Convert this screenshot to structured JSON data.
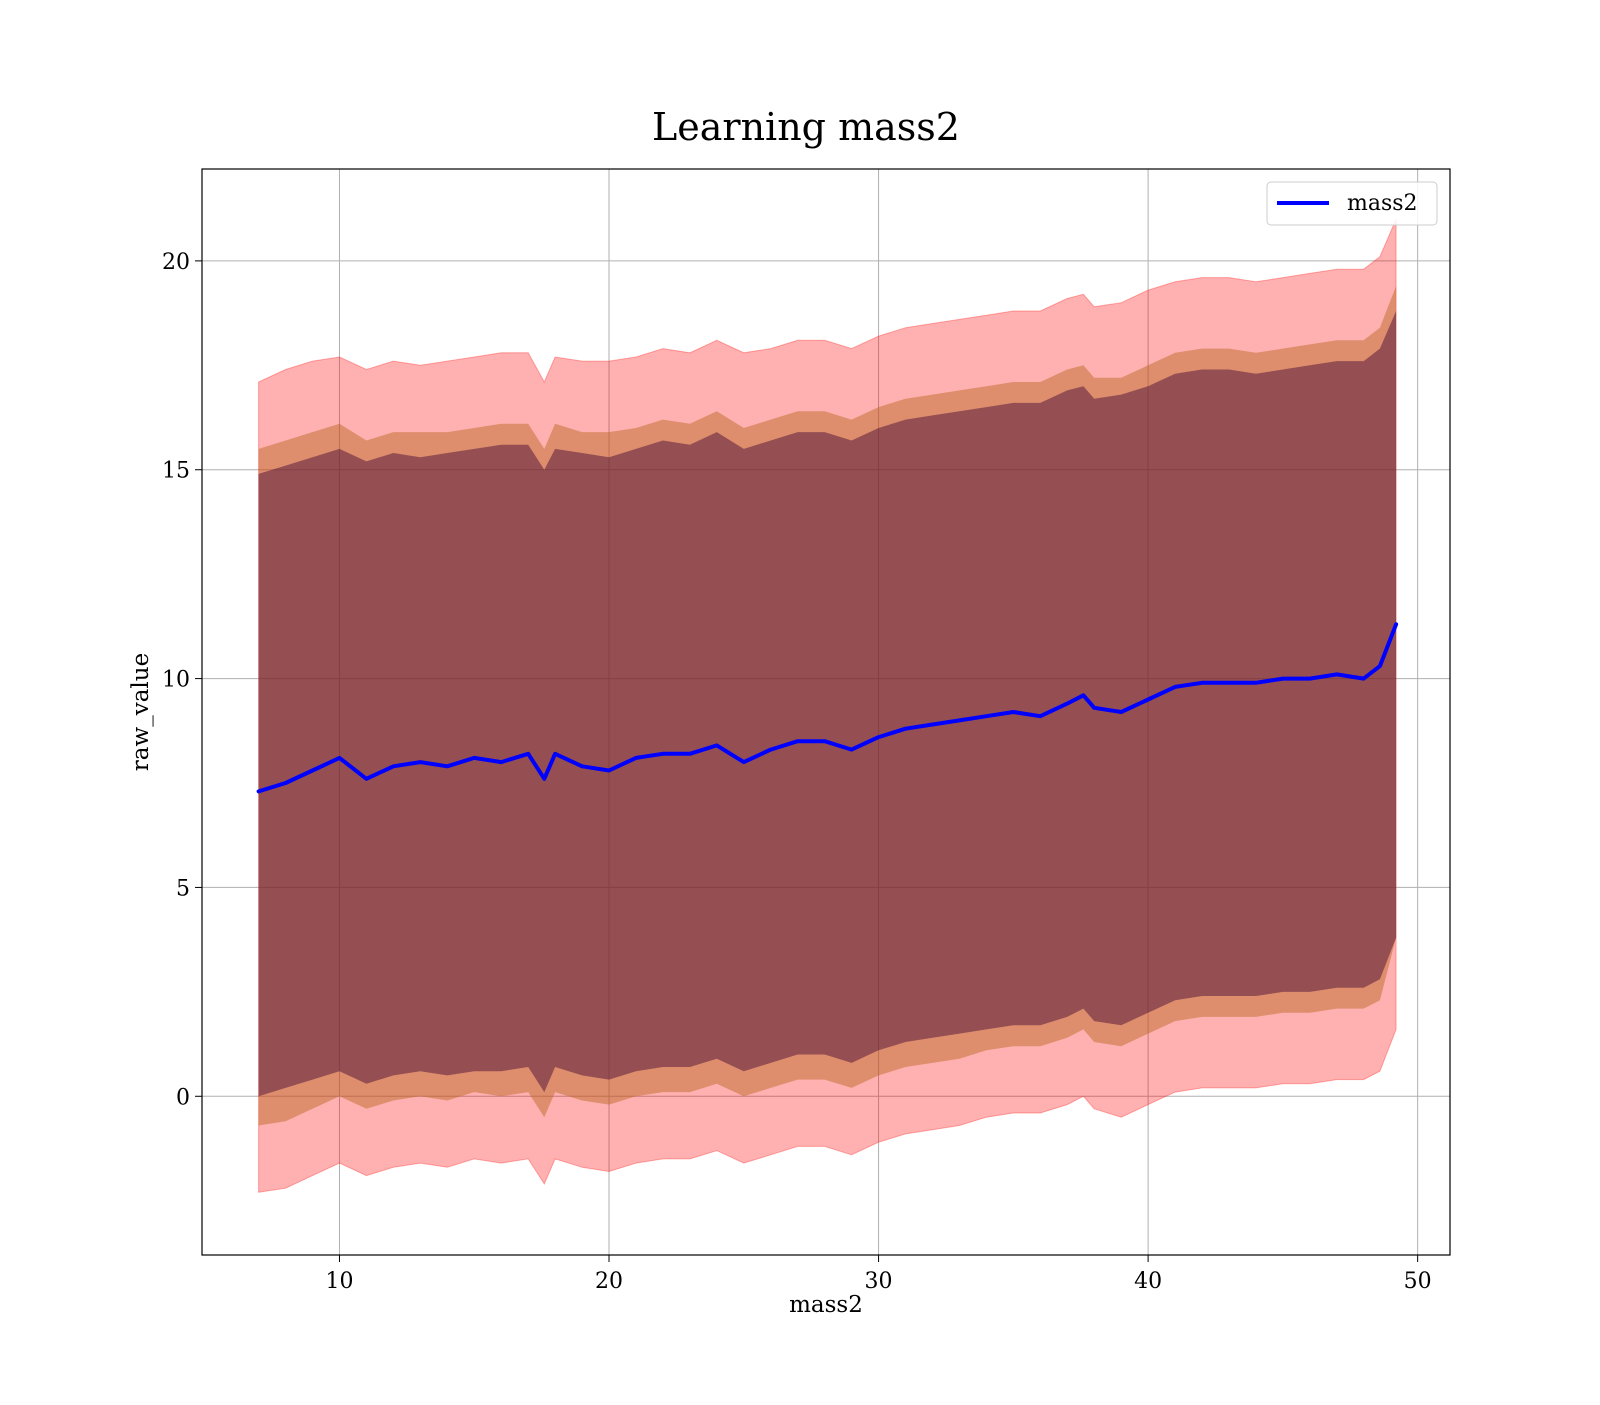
{
  "chart_data": {
    "type": "line",
    "title": "Learning mass2",
    "xlabel": "mass2",
    "ylabel": "raw_value",
    "xlim": [
      4.9,
      51.2
    ],
    "ylim": [
      -3.8,
      22.2
    ],
    "xticks": [
      10,
      20,
      30,
      40,
      50
    ],
    "yticks": [
      0,
      5,
      10,
      15,
      20
    ],
    "xtick_labels": [
      "10",
      "20",
      "30",
      "40",
      "50"
    ],
    "ytick_labels": [
      "0",
      "5",
      "10",
      "15",
      "20"
    ],
    "grid": true,
    "legend": {
      "position": "top-right",
      "entries": [
        "mass2"
      ]
    },
    "colors": {
      "line": "#0000ff",
      "band_outer": "#ff0000",
      "band_middle": "#b5651d",
      "band_inner": "#4b0f3a"
    },
    "x": [
      7.0,
      8.0,
      9.0,
      10.0,
      11.0,
      12.0,
      13.0,
      14.0,
      15.0,
      16.0,
      17.0,
      17.6,
      18.0,
      19.0,
      20.0,
      21.0,
      22.0,
      23.0,
      24.0,
      25.0,
      26.0,
      27.0,
      28.0,
      29.0,
      30.0,
      31.0,
      32.0,
      33.0,
      34.0,
      35.0,
      36.0,
      37.0,
      37.6,
      38.0,
      39.0,
      40.0,
      41.0,
      42.0,
      43.0,
      44.0,
      45.0,
      46.0,
      47.0,
      48.0,
      48.6,
      49.2
    ],
    "series": [
      {
        "name": "mass2",
        "values": [
          7.3,
          7.5,
          7.8,
          8.1,
          7.6,
          7.9,
          8.0,
          7.9,
          8.1,
          8.0,
          8.2,
          7.6,
          8.2,
          7.9,
          7.8,
          8.1,
          8.2,
          8.2,
          8.4,
          8.0,
          8.3,
          8.5,
          8.5,
          8.3,
          8.6,
          8.8,
          8.9,
          9.0,
          9.1,
          9.2,
          9.1,
          9.4,
          9.6,
          9.3,
          9.2,
          9.5,
          9.8,
          9.9,
          9.9,
          9.9,
          10.0,
          10.0,
          10.1,
          10.0,
          10.3,
          11.3
        ],
        "band_outer": {
          "upper": [
            17.1,
            17.4,
            17.6,
            17.7,
            17.4,
            17.6,
            17.5,
            17.6,
            17.7,
            17.8,
            17.8,
            17.1,
            17.7,
            17.6,
            17.6,
            17.7,
            17.9,
            17.8,
            18.1,
            17.8,
            17.9,
            18.1,
            18.1,
            17.9,
            18.2,
            18.4,
            18.5,
            18.6,
            18.7,
            18.8,
            18.8,
            19.1,
            19.2,
            18.9,
            19.0,
            19.3,
            19.5,
            19.6,
            19.6,
            19.5,
            19.6,
            19.7,
            19.8,
            19.8,
            20.1,
            21.0
          ],
          "lower": [
            -2.3,
            -2.2,
            -1.9,
            -1.6,
            -1.9,
            -1.7,
            -1.6,
            -1.7,
            -1.5,
            -1.6,
            -1.5,
            -2.1,
            -1.5,
            -1.7,
            -1.8,
            -1.6,
            -1.5,
            -1.5,
            -1.3,
            -1.6,
            -1.4,
            -1.2,
            -1.2,
            -1.4,
            -1.1,
            -0.9,
            -0.8,
            -0.7,
            -0.5,
            -0.4,
            -0.4,
            -0.2,
            0.0,
            -0.3,
            -0.5,
            -0.2,
            0.1,
            0.2,
            0.2,
            0.2,
            0.3,
            0.3,
            0.4,
            0.4,
            0.6,
            1.6
          ]
        },
        "band_middle": {
          "upper": [
            15.5,
            15.7,
            15.9,
            16.1,
            15.7,
            15.9,
            15.9,
            15.9,
            16.0,
            16.1,
            16.1,
            15.5,
            16.1,
            15.9,
            15.9,
            16.0,
            16.2,
            16.1,
            16.4,
            16.0,
            16.2,
            16.4,
            16.4,
            16.2,
            16.5,
            16.7,
            16.8,
            16.9,
            17.0,
            17.1,
            17.1,
            17.4,
            17.5,
            17.2,
            17.2,
            17.5,
            17.8,
            17.9,
            17.9,
            17.8,
            17.9,
            18.0,
            18.1,
            18.1,
            18.4,
            19.4
          ],
          "lower": [
            -0.7,
            -0.6,
            -0.3,
            0.0,
            -0.3,
            -0.1,
            0.0,
            -0.1,
            0.1,
            0.0,
            0.1,
            -0.5,
            0.1,
            -0.1,
            -0.2,
            0.0,
            0.1,
            0.1,
            0.3,
            0.0,
            0.2,
            0.4,
            0.4,
            0.2,
            0.5,
            0.7,
            0.8,
            0.9,
            1.1,
            1.2,
            1.2,
            1.4,
            1.6,
            1.3,
            1.2,
            1.5,
            1.8,
            1.9,
            1.9,
            1.9,
            2.0,
            2.0,
            2.1,
            2.1,
            2.3,
            3.8
          ]
        },
        "band_inner": {
          "upper": [
            14.9,
            15.1,
            15.3,
            15.5,
            15.2,
            15.4,
            15.3,
            15.4,
            15.5,
            15.6,
            15.6,
            15.0,
            15.5,
            15.4,
            15.3,
            15.5,
            15.7,
            15.6,
            15.9,
            15.5,
            15.7,
            15.9,
            15.9,
            15.7,
            16.0,
            16.2,
            16.3,
            16.4,
            16.5,
            16.6,
            16.6,
            16.9,
            17.0,
            16.7,
            16.8,
            17.0,
            17.3,
            17.4,
            17.4,
            17.3,
            17.4,
            17.5,
            17.6,
            17.6,
            17.9,
            18.8
          ],
          "lower": [
            0.0,
            0.2,
            0.4,
            0.6,
            0.3,
            0.5,
            0.6,
            0.5,
            0.6,
            0.6,
            0.7,
            0.1,
            0.7,
            0.5,
            0.4,
            0.6,
            0.7,
            0.7,
            0.9,
            0.6,
            0.8,
            1.0,
            1.0,
            0.8,
            1.1,
            1.3,
            1.4,
            1.5,
            1.6,
            1.7,
            1.7,
            1.9,
            2.1,
            1.8,
            1.7,
            2.0,
            2.3,
            2.4,
            2.4,
            2.4,
            2.5,
            2.5,
            2.6,
            2.6,
            2.8,
            3.8
          ]
        }
      }
    ]
  }
}
